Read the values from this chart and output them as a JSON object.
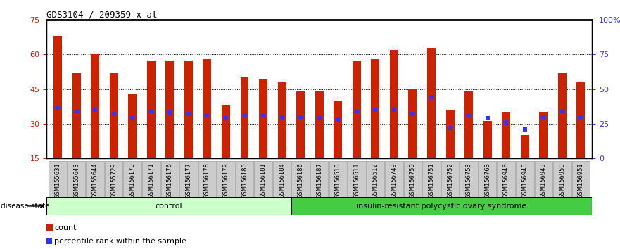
{
  "title": "GDS3104 / 209359_x_at",
  "samples": [
    "GSM155631",
    "GSM155643",
    "GSM155644",
    "GSM155729",
    "GSM156170",
    "GSM156171",
    "GSM156176",
    "GSM156177",
    "GSM156178",
    "GSM156179",
    "GSM156180",
    "GSM156181",
    "GSM156184",
    "GSM156186",
    "GSM156187",
    "GSM156510",
    "GSM156511",
    "GSM156512",
    "GSM156749",
    "GSM156750",
    "GSM156751",
    "GSM156752",
    "GSM156753",
    "GSM156763",
    "GSM156946",
    "GSM156948",
    "GSM156949",
    "GSM156950",
    "GSM156951"
  ],
  "counts": [
    68,
    52,
    60,
    52,
    43,
    57,
    57,
    57,
    58,
    38,
    50,
    49,
    48,
    44,
    44,
    40,
    57,
    58,
    62,
    45,
    63,
    36,
    44,
    31,
    35,
    25,
    35,
    52,
    48
  ],
  "percentile_ranks": [
    36,
    34,
    35,
    32,
    29,
    34,
    33,
    32,
    31,
    29,
    31,
    31,
    30,
    30,
    29,
    28,
    34,
    35,
    35,
    32,
    44,
    22,
    31,
    29,
    26,
    21,
    30,
    34,
    30
  ],
  "control_count": 13,
  "disease_count": 16,
  "ylim_left": [
    15,
    75
  ],
  "ylim_right": [
    0,
    100
  ],
  "yticks_left": [
    15,
    30,
    45,
    60,
    75
  ],
  "yticks_right": [
    0,
    25,
    50,
    75,
    100
  ],
  "bar_color": "#cc2200",
  "marker_color": "#3333ff",
  "control_bg": "#ccffcc",
  "disease_bg": "#44cc44",
  "control_label": "control",
  "disease_label": "insulin-resistant polycystic ovary syndrome",
  "legend_count_label": "count",
  "legend_pct_label": "percentile rank within the sample",
  "axis_color_left": "#cc2200",
  "axis_color_right": "#3333ff",
  "bar_width": 0.45,
  "xtick_bg": "#cccccc",
  "xtick_border": "#999999"
}
